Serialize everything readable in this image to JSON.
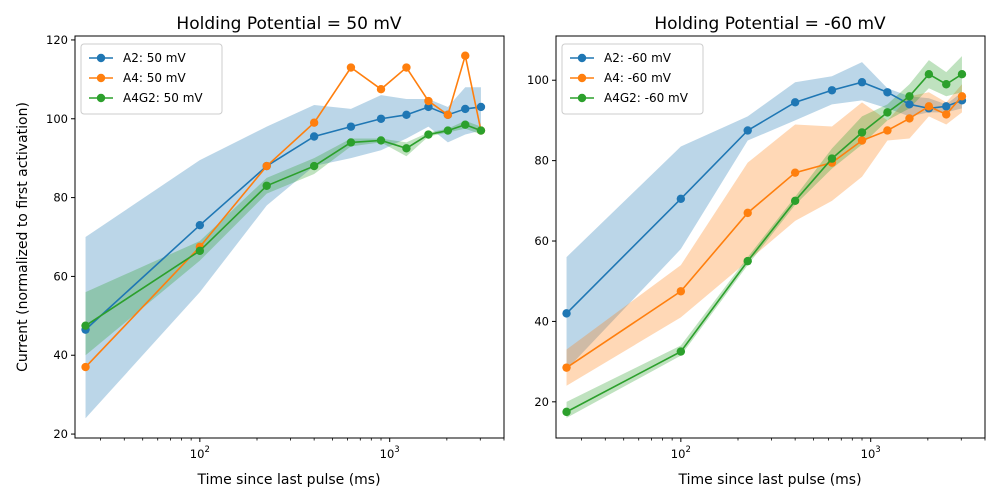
{
  "colors": {
    "A2": "#1f77b4",
    "A4": "#ff7f0e",
    "A4G2": "#2ca02c"
  },
  "chart_data": [
    {
      "type": "line",
      "title": "Holding Potential = 50 mV",
      "xlabel": "Time since last pulse (ms)",
      "ylabel": "Current (normalized to first activation)",
      "xscale": "log",
      "xlim": [
        22,
        4000
      ],
      "ylim": [
        19,
        121
      ],
      "yticks": [
        20,
        40,
        60,
        80,
        100,
        120
      ],
      "xticks": [
        {
          "value": 100,
          "label": "10^2"
        },
        {
          "value": 1000,
          "label": "10^3"
        }
      ],
      "legend": "top-left",
      "series": [
        {
          "name": "A2: 50 mV",
          "color": "#1f77b4",
          "x": [
            25,
            100,
            225,
            400,
            625,
            900,
            1225,
            1600,
            2025,
            2500,
            3025
          ],
          "y": [
            46.5,
            73,
            88,
            95.5,
            98,
            100,
            101,
            103,
            101,
            102.5,
            103
          ],
          "lower": [
            24,
            56,
            78,
            88,
            90,
            92,
            95,
            98,
            94,
            96,
            97
          ],
          "upper": [
            70,
            89.5,
            98,
            103.5,
            102.5,
            106,
            105,
            105,
            103,
            108,
            108
          ]
        },
        {
          "name": "A4: 50 mV",
          "color": "#ff7f0e",
          "x": [
            25,
            100,
            225,
            400,
            625,
            900,
            1225,
            1600,
            2025,
            2500,
            3025
          ],
          "y": [
            37,
            67.5,
            88,
            99,
            113,
            107.5,
            113,
            104.5,
            101,
            116,
            97
          ]
        },
        {
          "name": "A4G2: 50 mV",
          "color": "#2ca02c",
          "x": [
            25,
            100,
            225,
            400,
            625,
            900,
            1225,
            1600,
            2025,
            2500,
            3025
          ],
          "y": [
            47.5,
            66.5,
            83,
            88,
            94,
            94.5,
            92.5,
            96,
            97,
            98.5,
            97
          ],
          "lower": [
            40,
            64,
            81,
            86,
            93,
            94,
            90.5,
            95.5,
            96.5,
            97.5,
            96
          ],
          "upper": [
            56,
            69,
            85,
            90,
            95,
            95,
            94,
            96.5,
            97.5,
            99.5,
            98
          ]
        }
      ]
    },
    {
      "type": "line",
      "title": "Holding Potential = -60 mV",
      "xlabel": "Time since last pulse (ms)",
      "ylabel": "",
      "xscale": "log",
      "xlim": [
        22,
        4000
      ],
      "ylim": [
        11,
        111
      ],
      "yticks": [
        20,
        40,
        60,
        80,
        100
      ],
      "xticks": [
        {
          "value": 100,
          "label": "10^2"
        },
        {
          "value": 1000,
          "label": "10^3"
        }
      ],
      "legend": "top-left",
      "series": [
        {
          "name": "A2: -60 mV",
          "color": "#1f77b4",
          "x": [
            25,
            100,
            225,
            400,
            625,
            900,
            1225,
            1600,
            2025,
            2500,
            3025
          ],
          "y": [
            42,
            70.5,
            87.5,
            94.5,
            97.5,
            99.5,
            97,
            94,
            93,
            93.5,
            95
          ],
          "lower": [
            28,
            58,
            85,
            90,
            94,
            95,
            93,
            91,
            92,
            92,
            93
          ],
          "upper": [
            56,
            83.5,
            91,
            99.5,
            101,
            104.5,
            98,
            96,
            95.5,
            94,
            97
          ]
        },
        {
          "name": "A4: -60 mV",
          "color": "#ff7f0e",
          "x": [
            25,
            100,
            225,
            400,
            625,
            900,
            1225,
            1600,
            2025,
            2500,
            3025
          ],
          "y": [
            28.5,
            47.5,
            67,
            77,
            79.5,
            85,
            87.5,
            90.5,
            93.5,
            91.5,
            96
          ],
          "lower": [
            24,
            41,
            55,
            65,
            70,
            76,
            85,
            85.5,
            91,
            89,
            92
          ],
          "upper": [
            33,
            54,
            79.5,
            89,
            88.5,
            94.5,
            90,
            96,
            97,
            94.5,
            99
          ]
        },
        {
          "name": "A4G2: -60 mV",
          "color": "#2ca02c",
          "x": [
            25,
            100,
            225,
            400,
            625,
            900,
            1225,
            1600,
            2025,
            2500,
            3025
          ],
          "y": [
            17.5,
            32.5,
            55,
            70,
            80.5,
            87,
            92,
            96,
            101.5,
            99,
            101.5
          ],
          "lower": [
            16,
            31.5,
            54,
            69,
            78,
            84,
            90,
            93,
            98,
            96,
            97
          ],
          "upper": [
            20,
            34,
            56,
            71,
            83,
            91,
            94,
            99,
            105,
            102,
            106
          ]
        }
      ]
    }
  ]
}
